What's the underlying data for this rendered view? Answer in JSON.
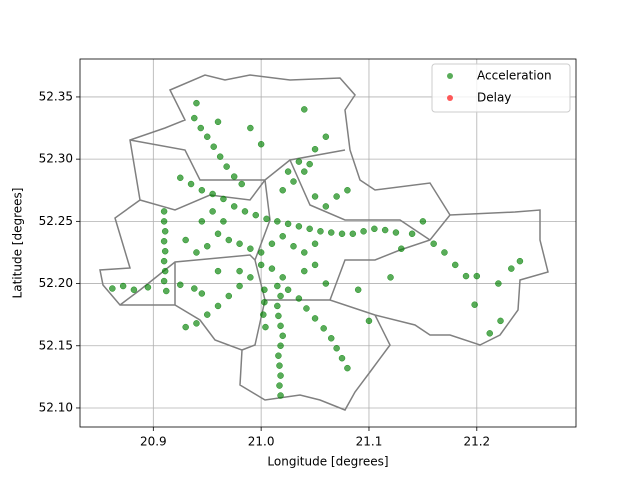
{
  "chart_data": {
    "type": "scatter",
    "xlabel": "Longitude [degrees]",
    "ylabel": "Latitude [degrees]",
    "xlim": [
      20.832,
      21.292
    ],
    "ylim": [
      52.0847,
      52.3805
    ],
    "xticks": [
      20.9,
      {
        "value": 21.0,
        "label": "21.0"
      },
      21.1,
      21.2
    ],
    "yticks": [
      {
        "value": 52.1,
        "label": "52.10"
      },
      52.15,
      {
        "value": 52.2,
        "label": "52.20"
      },
      52.25,
      {
        "value": 52.3,
        "label": "52.30"
      },
      52.35
    ],
    "grid": true,
    "legend": "upper right",
    "series": [
      {
        "name": "Acceleration",
        "color": "#008000",
        "x": [
          20.91,
          20.91,
          20.911,
          20.91,
          20.911,
          20.91,
          20.911,
          20.91,
          20.912,
          20.862,
          20.872,
          20.882,
          20.895,
          20.925,
          20.938,
          20.945,
          20.938,
          20.944,
          20.95,
          20.956,
          20.962,
          20.968,
          20.975,
          20.982,
          20.94,
          20.925,
          20.935,
          20.945,
          20.955,
          20.965,
          20.975,
          20.985,
          20.995,
          21.005,
          21.015,
          21.025,
          21.035,
          21.045,
          21.055,
          21.065,
          21.075,
          21.085,
          21.095,
          21.105,
          21.115,
          21.125,
          20.96,
          20.97,
          20.98,
          20.99,
          21.0,
          21.01,
          21.02,
          21.03,
          21.04,
          21.05,
          20.95,
          20.94,
          20.93,
          20.945,
          20.955,
          20.965,
          21.0,
          21.01,
          21.02,
          21.015,
          21.018,
          21.015,
          21.016,
          21.018,
          21.02,
          21.018,
          21.016,
          21.017,
          21.018,
          21.017,
          21.018,
          21.003,
          21.003,
          21.002,
          21.004,
          21.025,
          21.035,
          21.042,
          21.05,
          21.058,
          21.065,
          21.07,
          21.075,
          21.08,
          20.99,
          20.98,
          20.97,
          20.96,
          20.95,
          20.94,
          20.93,
          21.02,
          21.03,
          21.04,
          21.045,
          21.025,
          21.035,
          21.05,
          21.06,
          21.07,
          21.08,
          21.04,
          21.06,
          21.05,
          21.0,
          20.99,
          20.96,
          21.15,
          21.16,
          21.17,
          21.18,
          21.19,
          21.2,
          21.22,
          21.24,
          21.232,
          21.222,
          21.212,
          21.198,
          21.13,
          21.12,
          21.14,
          21.1,
          21.09,
          20.98,
          20.96,
          21.04,
          21.06,
          21.05
        ],
        "values": [
          52.258,
          52.25,
          52.242,
          52.234,
          52.226,
          52.218,
          52.21,
          52.202,
          52.194,
          52.196,
          52.198,
          52.195,
          52.197,
          52.199,
          52.196,
          52.192,
          52.333,
          52.325,
          52.318,
          52.31,
          52.302,
          52.294,
          52.286,
          52.28,
          52.345,
          52.285,
          52.28,
          52.275,
          52.272,
          52.268,
          52.262,
          52.258,
          52.255,
          52.252,
          52.25,
          52.248,
          52.246,
          52.244,
          52.242,
          52.241,
          52.24,
          52.24,
          52.242,
          52.244,
          52.243,
          52.241,
          52.24,
          52.235,
          52.232,
          52.228,
          52.225,
          52.232,
          52.238,
          52.23,
          52.225,
          52.232,
          52.23,
          52.225,
          52.235,
          52.25,
          52.258,
          52.25,
          52.215,
          52.212,
          52.205,
          52.198,
          52.19,
          52.182,
          52.174,
          52.166,
          52.158,
          52.15,
          52.142,
          52.134,
          52.126,
          52.118,
          52.11,
          52.195,
          52.185,
          52.175,
          52.165,
          52.195,
          52.188,
          52.18,
          52.172,
          52.164,
          52.156,
          52.148,
          52.14,
          52.132,
          52.205,
          52.198,
          52.19,
          52.182,
          52.175,
          52.168,
          52.165,
          52.275,
          52.282,
          52.29,
          52.296,
          52.29,
          52.298,
          52.27,
          52.262,
          52.27,
          52.275,
          52.34,
          52.318,
          52.308,
          52.312,
          52.325,
          52.33,
          52.25,
          52.232,
          52.225,
          52.215,
          52.206,
          52.206,
          52.2,
          52.218,
          52.212,
          52.17,
          52.16,
          52.183,
          52.228,
          52.205,
          52.24,
          52.17,
          52.195,
          52.21,
          52.21,
          52.21,
          52.2,
          52.215
        ]
      },
      {
        "name": "Delay",
        "color": "#ff0000",
        "x": [],
        "values": []
      }
    ]
  }
}
